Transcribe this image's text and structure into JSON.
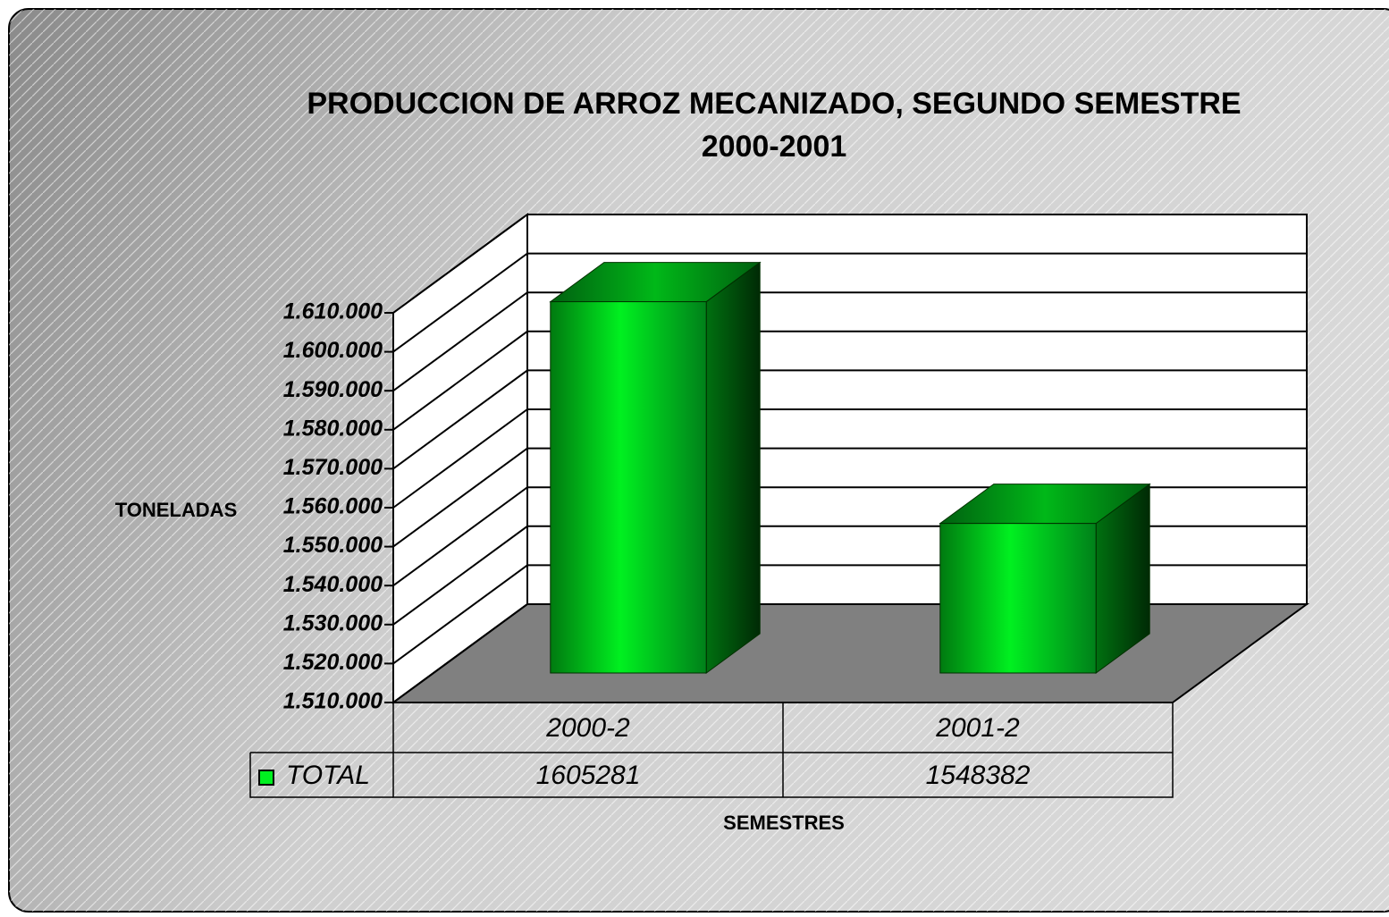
{
  "chart_data": {
    "type": "bar3d",
    "title": [
      "PRODUCCION DE ARROZ MECANIZADO, SEGUNDO SEMESTRE",
      "2000-2001"
    ],
    "y_label": "TONELADAS",
    "x_label": "SEMESTRES",
    "categories": [
      "2000-2",
      "2001-2"
    ],
    "series": [
      {
        "name": "TOTAL",
        "color": "#00f020",
        "values": [
          1605281,
          1548382
        ]
      }
    ],
    "ylim": [
      1510000,
      1610000
    ],
    "yticks": [
      {
        "value": 1510000,
        "label": "1.510.000"
      },
      {
        "value": 1520000,
        "label": "1.520.000"
      },
      {
        "value": 1530000,
        "label": "1.530.000"
      },
      {
        "value": 1540000,
        "label": "1.540.000"
      },
      {
        "value": 1550000,
        "label": "1.550.000"
      },
      {
        "value": 1560000,
        "label": "1.560.000"
      },
      {
        "value": 1570000,
        "label": "1.570.000"
      },
      {
        "value": 1580000,
        "label": "1.580.000"
      },
      {
        "value": 1590000,
        "label": "1.590.000"
      },
      {
        "value": 1600000,
        "label": "1.600.000"
      },
      {
        "value": 1610000,
        "label": "1.610.000"
      }
    ],
    "grid": true,
    "data_table": true
  }
}
